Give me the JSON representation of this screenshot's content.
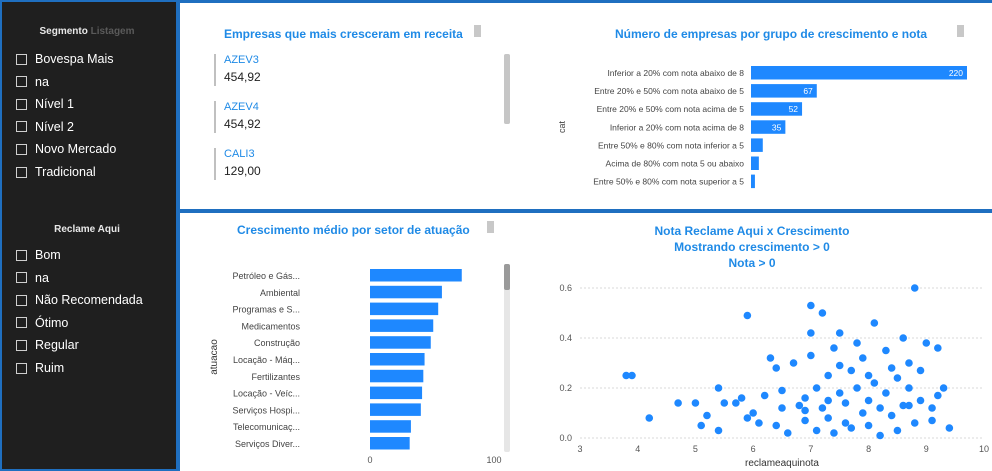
{
  "sidebar": {
    "segmento": {
      "title": "Segmento",
      "ghost": "Listagem",
      "items": [
        "Bovespa Mais",
        "na",
        "Nível 1",
        "Nível 2",
        "Novo Mercado",
        "Tradicional"
      ]
    },
    "reclame": {
      "title": "Reclame Aqui",
      "items": [
        "Bom",
        "na",
        "Não Recomendada",
        "Ótimo",
        "Regular",
        "Ruim"
      ]
    }
  },
  "cards": {
    "title": "Empresas que mais cresceram em receita",
    "items": [
      {
        "code": "AZEV3",
        "value": "454,92"
      },
      {
        "code": "AZEV4",
        "value": "454,92"
      },
      {
        "code": "CALI3",
        "value": "129,00"
      }
    ]
  },
  "colors": {
    "accent": "#1f8ae6",
    "bar": "#1e88ff",
    "panel": "#1f1f1f",
    "frame": "#1f6fc0"
  },
  "charts": {
    "grupo": {
      "title": "Número de empresas por grupo de crescimento e nota",
      "ylabel": "cat"
    },
    "setor": {
      "title": "Crescimento médio por setor de atuação",
      "ylabel": "atuacao"
    },
    "scatter": {
      "title_lines": [
        "Nota Reclame Aqui x Crescimento",
        "Mostrando crescimento > 0",
        "Nota > 0"
      ],
      "xlabel": "reclameaquinota"
    }
  },
  "chart_data": [
    {
      "type": "bar",
      "orientation": "horizontal",
      "title": "Número de empresas por grupo de crescimento e nota",
      "ylabel": "cat",
      "categories": [
        "Inferior a 20% com nota abaixo de 8",
        "Entre 20% e 50% com nota abaixo de 5",
        "Entre 20% e 50% com nota acima de 5",
        "Inferior a 20% com nota acima de 8",
        "Entre 50% e 80% com nota inferior a 5",
        "Acima de 80% com nota 5 ou abaixo",
        "Entre 50% e 80% com nota superior a 5"
      ],
      "values": [
        220,
        67,
        52,
        35,
        12,
        8,
        4
      ],
      "data_labels": [
        "220",
        "67",
        "52",
        "35",
        "",
        "",
        ""
      ],
      "xlim": [
        0,
        220
      ]
    },
    {
      "type": "bar",
      "orientation": "horizontal",
      "title": "Crescimento médio por setor de atuação",
      "ylabel": "atuacao",
      "categories": [
        "Petróleo e Gás...",
        "Ambiental",
        "Programas e S...",
        "Medicamentos",
        "Construção",
        "Locação - Máq...",
        "Fertilizantes",
        "Locação - Veíc...",
        "Serviços Hospi...",
        "Telecomunicaç...",
        "Serviços Diver..."
      ],
      "values": [
        74,
        58,
        55,
        51,
        49,
        44,
        43,
        42,
        41,
        33,
        32
      ],
      "xticks": [
        "0",
        "100"
      ],
      "xlim": [
        0,
        100
      ]
    },
    {
      "type": "scatter",
      "title": "Nota Reclame Aqui x Crescimento",
      "subtitle": "Mostrando crescimento > 0 / Nota > 0",
      "xlabel": "reclameaquinota",
      "xlim": [
        3,
        10
      ],
      "ylim": [
        0,
        0.6
      ],
      "xticks": [
        "3",
        "4",
        "5",
        "6",
        "7",
        "8",
        "9",
        "10"
      ],
      "yticks": [
        "0.0",
        "0.2",
        "0.4",
        "0.6"
      ],
      "points": [
        [
          3.8,
          0.25
        ],
        [
          3.9,
          0.25
        ],
        [
          4.2,
          0.08
        ],
        [
          4.7,
          0.14
        ],
        [
          5.0,
          0.14
        ],
        [
          5.1,
          0.05
        ],
        [
          5.2,
          0.09
        ],
        [
          5.4,
          0.2
        ],
        [
          5.5,
          0.14
        ],
        [
          5.4,
          0.03
        ],
        [
          5.7,
          0.14
        ],
        [
          5.8,
          0.16
        ],
        [
          5.9,
          0.49
        ],
        [
          6.0,
          0.1
        ],
        [
          6.1,
          0.06
        ],
        [
          6.2,
          0.17
        ],
        [
          6.3,
          0.32
        ],
        [
          6.4,
          0.28
        ],
        [
          6.5,
          0.12
        ],
        [
          6.6,
          0.02
        ],
        [
          6.7,
          0.3
        ],
        [
          6.8,
          0.13
        ],
        [
          6.9,
          0.11
        ],
        [
          7.0,
          0.42
        ],
        [
          7.0,
          0.33
        ],
        [
          7.1,
          0.2
        ],
        [
          7.2,
          0.12
        ],
        [
          7.2,
          0.5
        ],
        [
          7.3,
          0.25
        ],
        [
          7.3,
          0.08
        ],
        [
          7.4,
          0.36
        ],
        [
          7.5,
          0.18
        ],
        [
          7.5,
          0.42
        ],
        [
          7.6,
          0.14
        ],
        [
          7.7,
          0.27
        ],
        [
          7.7,
          0.04
        ],
        [
          7.8,
          0.2
        ],
        [
          7.9,
          0.1
        ],
        [
          7.9,
          0.32
        ],
        [
          8.0,
          0.15
        ],
        [
          8.0,
          0.05
        ],
        [
          8.1,
          0.22
        ],
        [
          8.1,
          0.46
        ],
        [
          8.2,
          0.12
        ],
        [
          8.3,
          0.18
        ],
        [
          8.3,
          0.35
        ],
        [
          8.4,
          0.09
        ],
        [
          8.5,
          0.24
        ],
        [
          8.5,
          0.03
        ],
        [
          8.6,
          0.13
        ],
        [
          8.7,
          0.3
        ],
        [
          8.7,
          0.2
        ],
        [
          8.8,
          0.06
        ],
        [
          8.8,
          0.6
        ],
        [
          8.9,
          0.15
        ],
        [
          9.0,
          0.38
        ],
        [
          9.1,
          0.12
        ],
        [
          9.2,
          0.17
        ],
        [
          9.3,
          0.2
        ],
        [
          9.4,
          0.04
        ],
        [
          7.0,
          0.53
        ],
        [
          7.4,
          0.02
        ],
        [
          6.9,
          0.16
        ],
        [
          7.8,
          0.38
        ],
        [
          8.4,
          0.28
        ],
        [
          6.5,
          0.19
        ],
        [
          7.6,
          0.06
        ],
        [
          8.9,
          0.27
        ],
        [
          9.1,
          0.07
        ],
        [
          8.2,
          0.01
        ],
        [
          6.9,
          0.07
        ],
        [
          7.3,
          0.15
        ],
        [
          8.6,
          0.4
        ],
        [
          9.2,
          0.36
        ],
        [
          5.9,
          0.08
        ],
        [
          6.4,
          0.05
        ],
        [
          7.1,
          0.03
        ],
        [
          8.0,
          0.25
        ],
        [
          8.7,
          0.13
        ],
        [
          7.5,
          0.29
        ]
      ]
    }
  ]
}
